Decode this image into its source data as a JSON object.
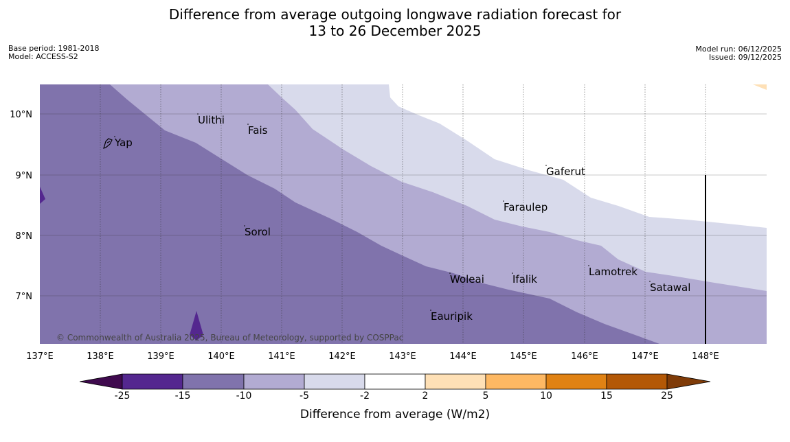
{
  "title": {
    "line1": "Difference from average outgoing longwave radiation forecast for",
    "line2": "13 to 26 December 2025"
  },
  "meta": {
    "base_period": "Base period: 1981-2018",
    "model": "Model: ACCESS-S2",
    "model_run": "Model run: 06/12/2025",
    "issued": "Issued: 09/12/2025"
  },
  "map": {
    "lon_range": [
      137,
      149
    ],
    "lat_range": [
      6.2,
      10.5
    ],
    "lon_ticks": [
      "137°E",
      "138°E",
      "139°E",
      "140°E",
      "141°E",
      "142°E",
      "143°E",
      "144°E",
      "145°E",
      "146°E",
      "147°E",
      "148°E"
    ],
    "lat_ticks": [
      "10°N",
      "9°N",
      "8°N",
      "7°N"
    ],
    "copyright": "© Commonwealth of Australia 2025, Bureau of Meteorology, supported by COSPPac",
    "places": [
      {
        "name": "Yap"
      },
      {
        "name": "Ulithi"
      },
      {
        "name": "Fais"
      },
      {
        "name": "Gaferut"
      },
      {
        "name": "Faraulep"
      },
      {
        "name": "Sorol"
      },
      {
        "name": "Lamotrek"
      },
      {
        "name": "Woleai"
      },
      {
        "name": "Ifalik"
      },
      {
        "name": "Satawal"
      },
      {
        "name": "Eauripik"
      }
    ],
    "band_colors": {
      "very_low": "#54278f",
      "low": "#8073ac",
      "mid": "#b2abd2",
      "light": "#d8daeb",
      "orange": "#fee0b6"
    }
  },
  "colorbar": {
    "label": "Difference from average (W/m2)",
    "ticks": [
      "-25",
      "-15",
      "-10",
      "-5",
      "-2",
      "2",
      "5",
      "10",
      "15",
      "25"
    ],
    "colors": [
      "#3f0a4e",
      "#54278f",
      "#8073ac",
      "#b2abd2",
      "#d8daeb",
      "#ffffff",
      "#fee0b6",
      "#fdb863",
      "#e08214",
      "#b35806",
      "#7f3b08"
    ]
  }
}
